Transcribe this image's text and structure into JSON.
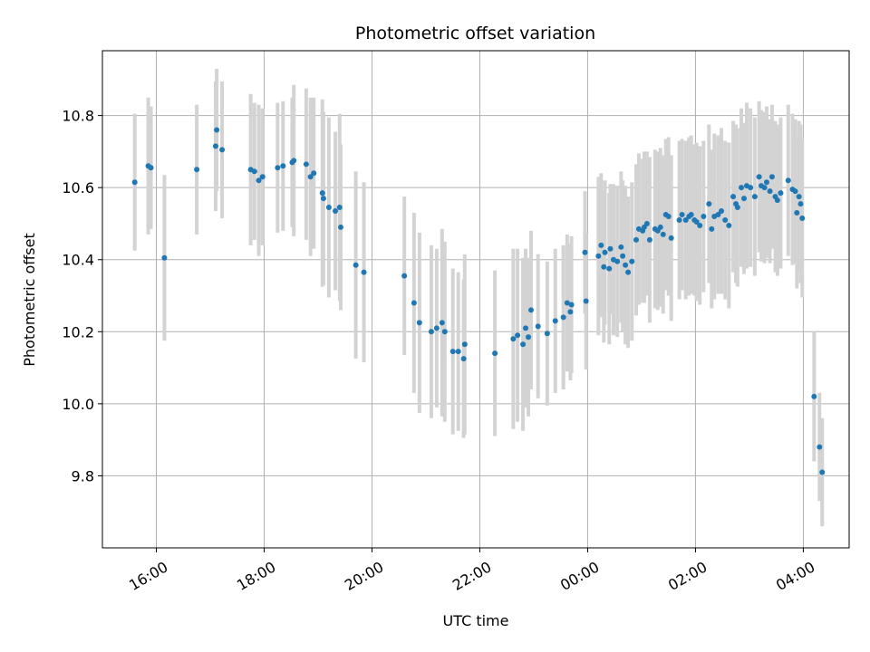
{
  "chart_data": {
    "type": "scatter",
    "title": "Photometric offset variation",
    "xlabel": "UTC time",
    "ylabel": "Photometric offset",
    "x_unit": "hours UTC (continuing past midnight)",
    "xlim": [
      15.0,
      28.85
    ],
    "ylim": [
      9.6,
      10.98
    ],
    "x_ticks": [
      {
        "value": 16,
        "label": "16:00"
      },
      {
        "value": 18,
        "label": "18:00"
      },
      {
        "value": 20,
        "label": "20:00"
      },
      {
        "value": 22,
        "label": "22:00"
      },
      {
        "value": 24,
        "label": "00:00"
      },
      {
        "value": 26,
        "label": "02:00"
      },
      {
        "value": 28,
        "label": "04:00"
      }
    ],
    "y_ticks": [
      {
        "value": 9.8,
        "label": "9.8"
      },
      {
        "value": 10.0,
        "label": "10.0"
      },
      {
        "value": 10.2,
        "label": "10.2"
      },
      {
        "value": 10.4,
        "label": "10.4"
      },
      {
        "value": 10.6,
        "label": "10.6"
      },
      {
        "value": 10.8,
        "label": "10.8"
      }
    ],
    "grid": true,
    "colors": {
      "point": "#1f77b4",
      "errorbar": "#d3d3d3",
      "grid": "#b0b0b0"
    },
    "series": [
      {
        "points": [
          [
            15.6,
            10.615,
            0.19
          ],
          [
            15.85,
            10.66,
            0.19
          ],
          [
            15.9,
            10.655,
            0.17
          ],
          [
            16.15,
            10.405,
            0.23
          ],
          [
            16.75,
            10.65,
            0.18
          ],
          [
            17.1,
            10.715,
            0.18
          ],
          [
            17.12,
            10.76,
            0.17
          ],
          [
            17.22,
            10.705,
            0.19
          ],
          [
            17.75,
            10.65,
            0.21
          ],
          [
            17.82,
            10.645,
            0.19
          ],
          [
            17.9,
            10.62,
            0.21
          ],
          [
            17.97,
            10.63,
            0.19
          ],
          [
            18.25,
            10.655,
            0.18
          ],
          [
            18.35,
            10.66,
            0.18
          ],
          [
            18.52,
            10.67,
            0.18
          ],
          [
            18.55,
            10.675,
            0.21
          ],
          [
            18.78,
            10.665,
            0.21
          ],
          [
            18.86,
            10.63,
            0.22
          ],
          [
            18.92,
            10.64,
            0.21
          ],
          [
            19.08,
            10.585,
            0.26
          ],
          [
            19.1,
            10.57,
            0.24
          ],
          [
            19.2,
            10.545,
            0.25
          ],
          [
            19.32,
            10.535,
            0.22
          ],
          [
            19.4,
            10.545,
            0.26
          ],
          [
            19.42,
            10.49,
            0.23
          ],
          [
            19.7,
            10.385,
            0.26
          ],
          [
            19.85,
            10.365,
            0.25
          ],
          [
            20.6,
            10.355,
            0.22
          ],
          [
            20.78,
            10.28,
            0.25
          ],
          [
            20.88,
            10.225,
            0.25
          ],
          [
            21.1,
            10.2,
            0.24
          ],
          [
            21.2,
            10.21,
            0.22
          ],
          [
            21.3,
            10.225,
            0.26
          ],
          [
            21.35,
            10.2,
            0.25
          ],
          [
            21.5,
            10.145,
            0.23
          ],
          [
            21.6,
            10.145,
            0.22
          ],
          [
            21.72,
            10.165,
            0.25
          ],
          [
            21.7,
            10.125,
            0.22
          ],
          [
            22.28,
            10.14,
            0.23
          ],
          [
            22.62,
            10.18,
            0.25
          ],
          [
            22.7,
            10.19,
            0.24
          ],
          [
            22.8,
            10.165,
            0.24
          ],
          [
            22.85,
            10.21,
            0.22
          ],
          [
            22.9,
            10.185,
            0.22
          ],
          [
            22.95,
            10.26,
            0.22
          ],
          [
            23.08,
            10.215,
            0.2
          ],
          [
            23.25,
            10.195,
            0.2
          ],
          [
            23.4,
            10.23,
            0.2
          ],
          [
            23.55,
            10.24,
            0.2
          ],
          [
            23.62,
            10.28,
            0.19
          ],
          [
            23.68,
            10.255,
            0.19
          ],
          [
            23.7,
            10.275,
            0.19
          ],
          [
            23.95,
            10.42,
            0.17
          ],
          [
            23.97,
            10.285,
            0.19
          ],
          [
            24.2,
            10.41,
            0.22
          ],
          [
            24.25,
            10.44,
            0.2
          ],
          [
            24.3,
            10.38,
            0.21
          ],
          [
            24.32,
            10.42,
            0.2
          ],
          [
            24.4,
            10.375,
            0.21
          ],
          [
            24.42,
            10.43,
            0.18
          ],
          [
            24.48,
            10.4,
            0.21
          ],
          [
            24.55,
            10.395,
            0.21
          ],
          [
            24.62,
            10.435,
            0.21
          ],
          [
            24.65,
            10.41,
            0.21
          ],
          [
            24.7,
            10.385,
            0.22
          ],
          [
            24.75,
            10.365,
            0.21
          ],
          [
            24.82,
            10.395,
            0.22
          ],
          [
            24.9,
            10.455,
            0.21
          ],
          [
            24.95,
            10.485,
            0.21
          ],
          [
            25.02,
            10.48,
            0.2
          ],
          [
            25.05,
            10.49,
            0.21
          ],
          [
            25.1,
            10.5,
            0.2
          ],
          [
            25.15,
            10.455,
            0.23
          ],
          [
            25.25,
            10.485,
            0.22
          ],
          [
            25.3,
            10.48,
            0.22
          ],
          [
            25.35,
            10.49,
            0.22
          ],
          [
            25.4,
            10.47,
            0.22
          ],
          [
            25.45,
            10.525,
            0.21
          ],
          [
            25.5,
            10.52,
            0.22
          ],
          [
            25.55,
            10.46,
            0.23
          ],
          [
            25.7,
            10.51,
            0.22
          ],
          [
            25.75,
            10.525,
            0.21
          ],
          [
            25.82,
            10.51,
            0.22
          ],
          [
            25.88,
            10.52,
            0.22
          ],
          [
            25.92,
            10.525,
            0.22
          ],
          [
            25.98,
            10.51,
            0.21
          ],
          [
            26.02,
            10.505,
            0.22
          ],
          [
            26.08,
            10.495,
            0.22
          ],
          [
            26.15,
            10.52,
            0.21
          ],
          [
            26.25,
            10.555,
            0.22
          ],
          [
            26.3,
            10.485,
            0.22
          ],
          [
            26.35,
            10.52,
            0.23
          ],
          [
            26.42,
            10.525,
            0.22
          ],
          [
            26.48,
            10.535,
            0.23
          ],
          [
            26.55,
            10.51,
            0.22
          ],
          [
            26.62,
            10.495,
            0.23
          ],
          [
            26.7,
            10.575,
            0.21
          ],
          [
            26.75,
            10.555,
            0.22
          ],
          [
            26.78,
            10.545,
            0.22
          ],
          [
            26.85,
            10.6,
            0.22
          ],
          [
            26.9,
            10.57,
            0.21
          ],
          [
            26.95,
            10.605,
            0.23
          ],
          [
            27.02,
            10.6,
            0.22
          ],
          [
            27.1,
            10.575,
            0.22
          ],
          [
            27.18,
            10.63,
            0.21
          ],
          [
            27.22,
            10.605,
            0.21
          ],
          [
            27.28,
            10.6,
            0.21
          ],
          [
            27.32,
            10.615,
            0.21
          ],
          [
            27.38,
            10.59,
            0.2
          ],
          [
            27.42,
            10.63,
            0.2
          ],
          [
            27.48,
            10.575,
            0.21
          ],
          [
            27.52,
            10.565,
            0.21
          ],
          [
            27.58,
            10.585,
            0.21
          ],
          [
            27.72,
            10.62,
            0.21
          ],
          [
            27.8,
            10.595,
            0.21
          ],
          [
            27.85,
            10.59,
            0.2
          ],
          [
            27.88,
            10.53,
            0.21
          ],
          [
            27.92,
            10.575,
            0.21
          ],
          [
            27.95,
            10.555,
            0.22
          ],
          [
            27.98,
            10.515,
            0.22
          ],
          [
            28.2,
            10.02,
            0.18
          ],
          [
            28.3,
            9.88,
            0.15
          ],
          [
            28.35,
            9.81,
            0.15
          ]
        ]
      }
    ]
  }
}
